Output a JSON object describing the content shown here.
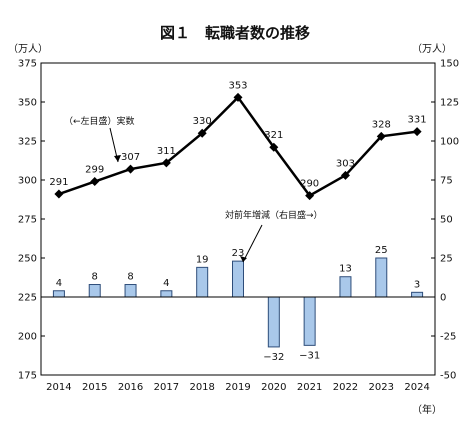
{
  "chart_data": {
    "type": "bar+line",
    "title": "図１　転職者数の推移",
    "left_unit": "（万人）",
    "right_unit": "（万人）",
    "x_unit": "（年）",
    "categories": [
      "2014",
      "2015",
      "2016",
      "2017",
      "2018",
      "2019",
      "2020",
      "2021",
      "2022",
      "2023",
      "2024"
    ],
    "series": [
      {
        "name": "実数",
        "type": "line",
        "axis": "left",
        "values": [
          291,
          299,
          307,
          311,
          330,
          353,
          321,
          290,
          303,
          328,
          331
        ]
      },
      {
        "name": "対前年増減",
        "type": "bar",
        "axis": "right",
        "values": [
          4,
          8,
          8,
          4,
          19,
          23,
          -32,
          -31,
          13,
          25,
          3
        ]
      }
    ],
    "left_axis": {
      "min": 175,
      "max": 375,
      "ticks": [
        175,
        200,
        225,
        250,
        275,
        300,
        325,
        350,
        375
      ]
    },
    "right_axis": {
      "min": -50,
      "max": 150,
      "ticks": [
        -50,
        -25,
        0,
        25,
        50,
        75,
        100,
        125,
        150
      ]
    },
    "annotations": [
      {
        "text": "（←左目盛）実数"
      },
      {
        "text": "対前年増減（右目盛→）"
      }
    ],
    "colors": {
      "bar_fill": "#a9c8ea",
      "bar_stroke": "#2e4d7a",
      "line": "#000000"
    }
  }
}
